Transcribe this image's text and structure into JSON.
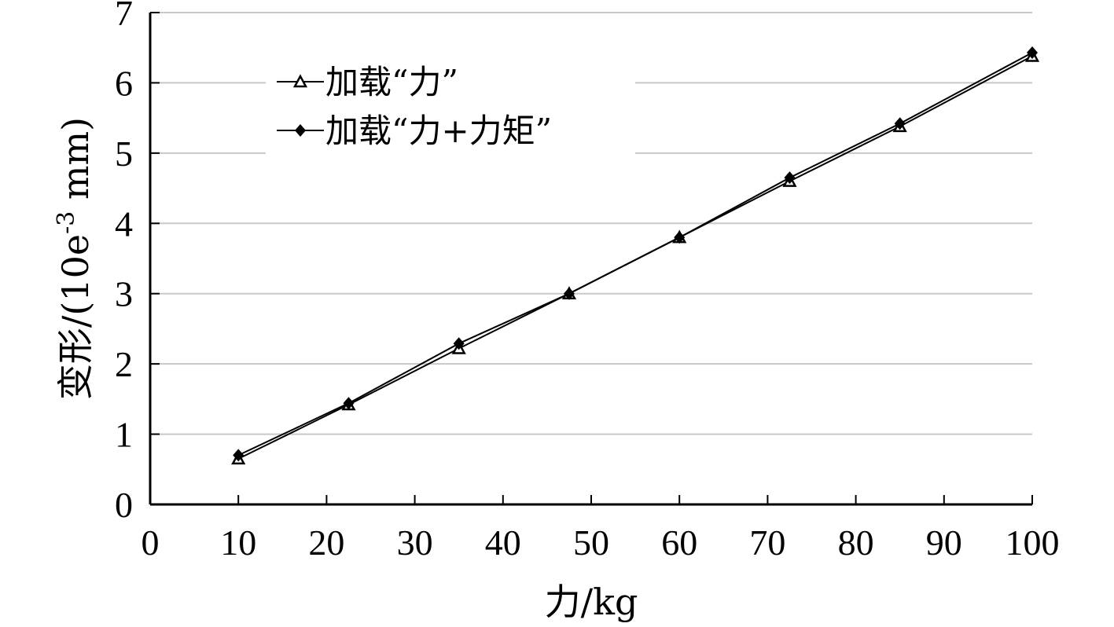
{
  "chart_data": {
    "type": "line",
    "xlabel": "力/kg",
    "ylabel": "变形/(10e",
    "ylabel_sup": "-3",
    "ylabel_tail": " mm)",
    "xlim": [
      0,
      100
    ],
    "ylim": [
      0,
      7
    ],
    "xticks": [
      "0",
      "10",
      "20",
      "30",
      "40",
      "50",
      "60",
      "70",
      "80",
      "90",
      "100"
    ],
    "yticks": [
      "0",
      "1",
      "2",
      "3",
      "4",
      "5",
      "6",
      "7"
    ],
    "grid": "horizontal",
    "legend_position": "top-left",
    "x": [
      10,
      22.5,
      35,
      47.5,
      60,
      72.5,
      85,
      100
    ],
    "series": [
      {
        "name": "加载“力”",
        "marker": "triangle-open",
        "values": [
          0.65,
          1.42,
          2.22,
          3.0,
          3.8,
          4.6,
          5.38,
          6.38
        ]
      },
      {
        "name": "加载“力+力矩”",
        "marker": "diamond-filled",
        "values": [
          0.7,
          1.44,
          2.29,
          3.0,
          3.8,
          4.65,
          5.42,
          6.43
        ]
      }
    ],
    "colors": {
      "line": "#000000",
      "grid": "#c8c8c8"
    }
  }
}
